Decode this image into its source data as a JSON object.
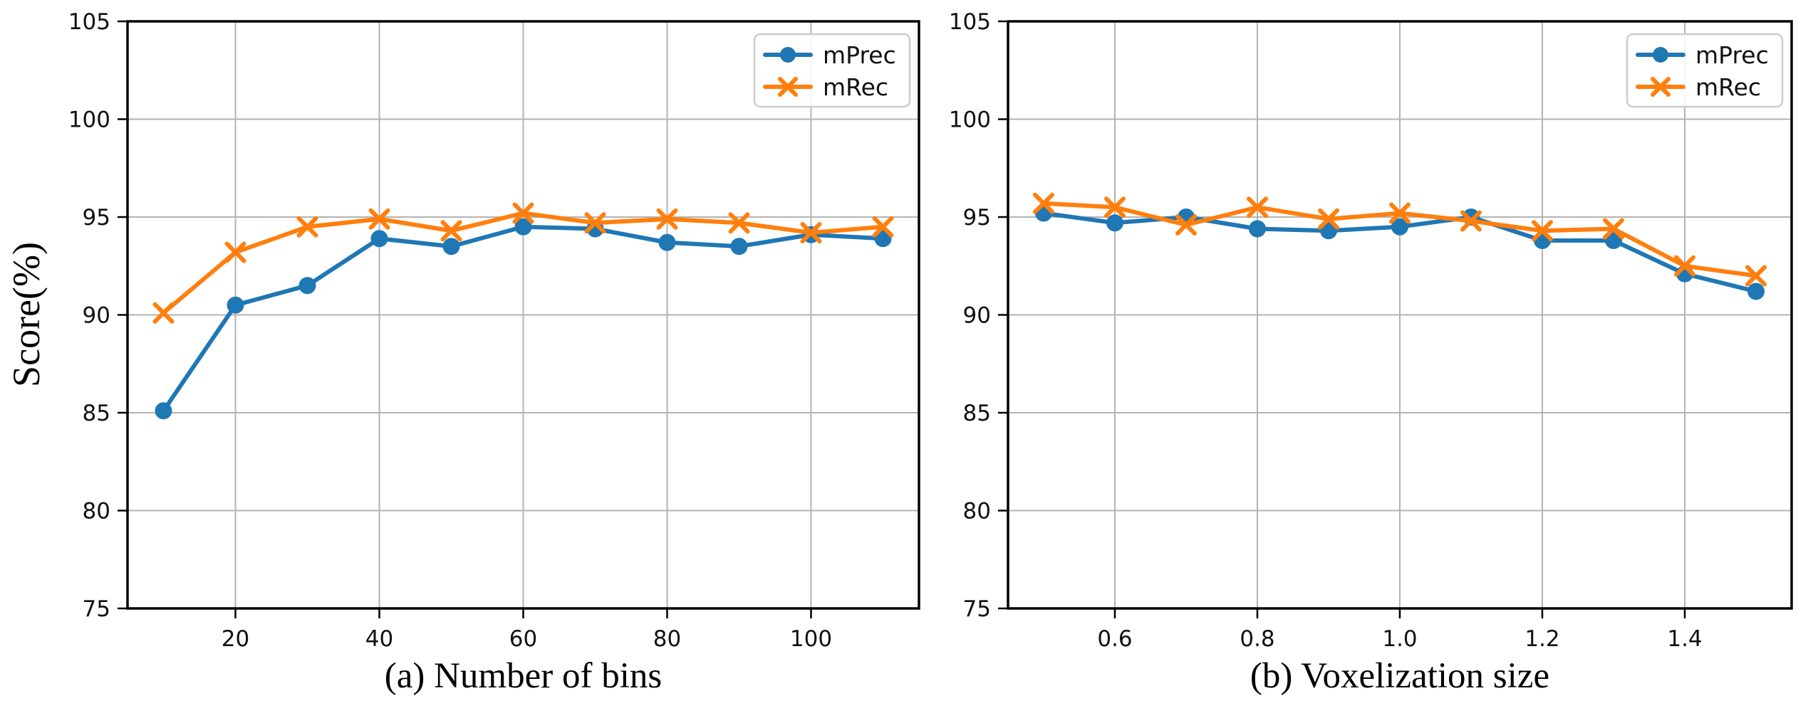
{
  "figure": {
    "background": "#ffffff",
    "ylabel": "Score(%)"
  },
  "style": {
    "grid_color": "#b3b3b3",
    "spine_color": "#000000",
    "tick_color": "#111111",
    "legend_border": "#cccccc",
    "legend_bg": "#ffffff",
    "series_blue": "#1f77b4",
    "series_orange": "#ff7f0e"
  },
  "chart_data": [
    {
      "type": "line",
      "title": "(a) Number of bins",
      "ylabel": "Score(%)",
      "x": [
        10,
        20,
        30,
        40,
        50,
        60,
        70,
        80,
        90,
        100,
        110
      ],
      "xlim": [
        5,
        115
      ],
      "ylim": [
        75,
        105
      ],
      "xticks": [
        20,
        40,
        60,
        80,
        100
      ],
      "xtick_labels": [
        "20",
        "40",
        "60",
        "80",
        "100"
      ],
      "yticks": [
        75,
        80,
        85,
        90,
        95,
        100,
        105
      ],
      "ytick_labels": [
        "75",
        "80",
        "85",
        "90",
        "95",
        "100",
        "105"
      ],
      "grid": true,
      "legend_position": "upper-right",
      "series": [
        {
          "name": "mPrec",
          "marker": "circle",
          "color": "#1f77b4",
          "values": [
            85.1,
            90.5,
            91.5,
            93.9,
            93.5,
            94.5,
            94.4,
            93.7,
            93.5,
            94.1,
            93.9
          ]
        },
        {
          "name": "mRec",
          "marker": "x",
          "color": "#ff7f0e",
          "values": [
            90.1,
            93.2,
            94.5,
            94.9,
            94.3,
            95.2,
            94.7,
            94.9,
            94.7,
            94.2,
            94.5
          ]
        }
      ]
    },
    {
      "type": "line",
      "title": "(b) Voxelization size",
      "ylabel": "Score(%)",
      "x": [
        0.5,
        0.6,
        0.7,
        0.8,
        0.9,
        1.0,
        1.1,
        1.2,
        1.3,
        1.4,
        1.5
      ],
      "xlim": [
        0.45,
        1.55
      ],
      "ylim": [
        75,
        105
      ],
      "xticks": [
        0.6,
        0.8,
        1.0,
        1.2,
        1.4
      ],
      "xtick_labels": [
        "0.6",
        "0.8",
        "1.0",
        "1.2",
        "1.4"
      ],
      "yticks": [
        75,
        80,
        85,
        90,
        95,
        100,
        105
      ],
      "ytick_labels": [
        "75",
        "80",
        "85",
        "90",
        "95",
        "100",
        "105"
      ],
      "grid": true,
      "legend_position": "upper-right",
      "series": [
        {
          "name": "mPrec",
          "marker": "circle",
          "color": "#1f77b4",
          "values": [
            95.2,
            94.7,
            95.0,
            94.4,
            94.3,
            94.5,
            95.0,
            93.8,
            93.8,
            92.1,
            91.2
          ]
        },
        {
          "name": "mRec",
          "marker": "x",
          "color": "#ff7f0e",
          "values": [
            95.7,
            95.5,
            94.6,
            95.5,
            94.9,
            95.2,
            94.8,
            94.3,
            94.4,
            92.5,
            92.0
          ]
        }
      ]
    }
  ]
}
